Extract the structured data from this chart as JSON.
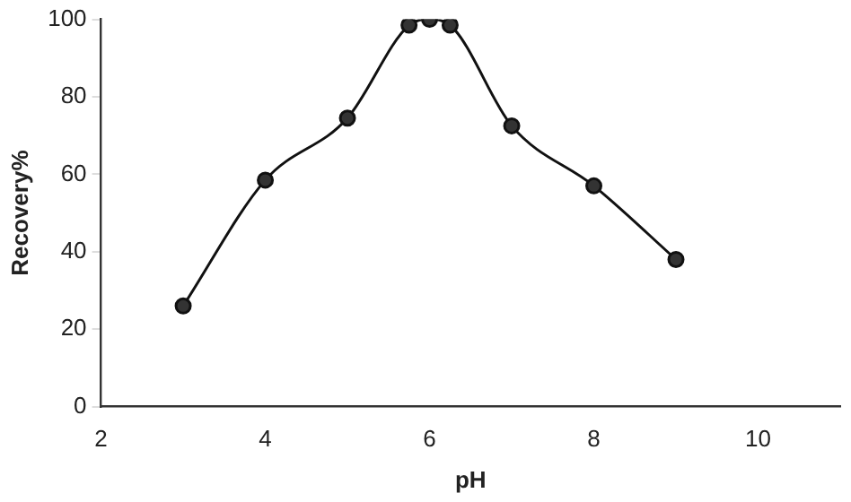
{
  "chart_data": {
    "type": "line",
    "xlabel": "pH",
    "ylabel": "Recovery%",
    "x": [
      3,
      4,
      5,
      5.75,
      6,
      6.25,
      7,
      8,
      9
    ],
    "series": [
      {
        "color": "#111111",
        "values": [
          26,
          58.5,
          74.5,
          98.5,
          100,
          98.5,
          72.5,
          57,
          38
        ]
      }
    ],
    "xlim": [
      2,
      11
    ],
    "xticks": [
      2,
      4,
      6,
      8,
      10
    ],
    "ylim": [
      0,
      100
    ],
    "yticks": [
      0,
      20,
      40,
      60,
      80,
      100
    ],
    "grid": false,
    "legend": false,
    "marker": "circle",
    "line_style": "solid"
  }
}
